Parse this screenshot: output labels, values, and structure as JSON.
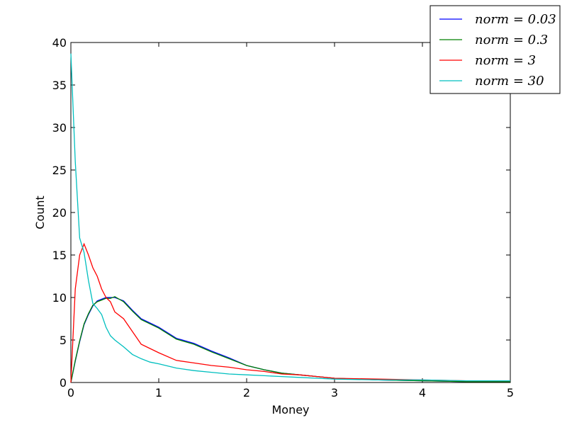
{
  "chart_data": {
    "type": "line",
    "xlabel": "Money",
    "ylabel": "Count",
    "xlim": [
      0,
      5
    ],
    "ylim": [
      0,
      40
    ],
    "xticks": [
      0,
      1,
      2,
      3,
      4,
      5
    ],
    "yticks": [
      0,
      5,
      10,
      15,
      20,
      25,
      30,
      35,
      40
    ],
    "xtick_labels": [
      "0",
      "1",
      "2",
      "3",
      "4",
      "5"
    ],
    "ytick_labels": [
      "0",
      "5",
      "10",
      "15",
      "20",
      "25",
      "30",
      "35",
      "40"
    ],
    "grid": false,
    "legend_position": "top-right",
    "x": [
      0.0,
      0.05,
      0.1,
      0.15,
      0.2,
      0.25,
      0.3,
      0.35,
      0.4,
      0.45,
      0.5,
      0.6,
      0.7,
      0.8,
      0.9,
      1.0,
      1.2,
      1.4,
      1.6,
      1.8,
      2.0,
      2.2,
      2.4,
      2.6,
      2.8,
      3.0,
      3.5,
      4.0,
      4.5,
      5.0
    ],
    "series": [
      {
        "name": "norm = 0.03",
        "color": "#0000ff",
        "values": [
          0.0,
          2.5,
          4.8,
          6.8,
          8.0,
          9.0,
          9.6,
          9.8,
          10.0,
          10.0,
          10.0,
          9.6,
          8.5,
          7.5,
          7.0,
          6.5,
          5.2,
          4.6,
          3.7,
          2.9,
          2.0,
          1.5,
          1.1,
          0.9,
          0.7,
          0.5,
          0.3,
          0.2,
          0.1,
          0.1
        ]
      },
      {
        "name": "norm = 0.3",
        "color": "#008000",
        "values": [
          0.0,
          2.6,
          4.9,
          6.9,
          8.1,
          9.1,
          9.5,
          9.7,
          9.9,
          9.9,
          10.1,
          9.5,
          8.4,
          7.4,
          6.9,
          6.4,
          5.1,
          4.5,
          3.6,
          2.8,
          2.0,
          1.5,
          1.1,
          0.9,
          0.7,
          0.5,
          0.3,
          0.2,
          0.1,
          0.1
        ]
      },
      {
        "name": "norm = 3",
        "color": "#ff0000",
        "values": [
          0.0,
          11.0,
          15.0,
          16.3,
          15.0,
          13.5,
          12.5,
          11.0,
          10.0,
          9.5,
          8.3,
          7.5,
          6.0,
          4.5,
          4.0,
          3.5,
          2.6,
          2.3,
          2.0,
          1.8,
          1.5,
          1.3,
          1.0,
          0.9,
          0.7,
          0.5,
          0.4,
          0.3,
          0.2,
          0.2
        ]
      },
      {
        "name": "norm = 30",
        "color": "#00bfbf",
        "values": [
          38.7,
          26.0,
          17.0,
          15.3,
          12.0,
          9.3,
          8.7,
          8.0,
          6.5,
          5.5,
          5.0,
          4.2,
          3.3,
          2.8,
          2.4,
          2.2,
          1.7,
          1.4,
          1.2,
          1.0,
          0.9,
          0.8,
          0.7,
          0.6,
          0.5,
          0.4,
          0.3,
          0.3,
          0.2,
          0.2
        ]
      }
    ],
    "legend_labels": [
      "norm = 0.03",
      "norm = 0.3",
      "norm = 3",
      "norm = 30"
    ]
  }
}
